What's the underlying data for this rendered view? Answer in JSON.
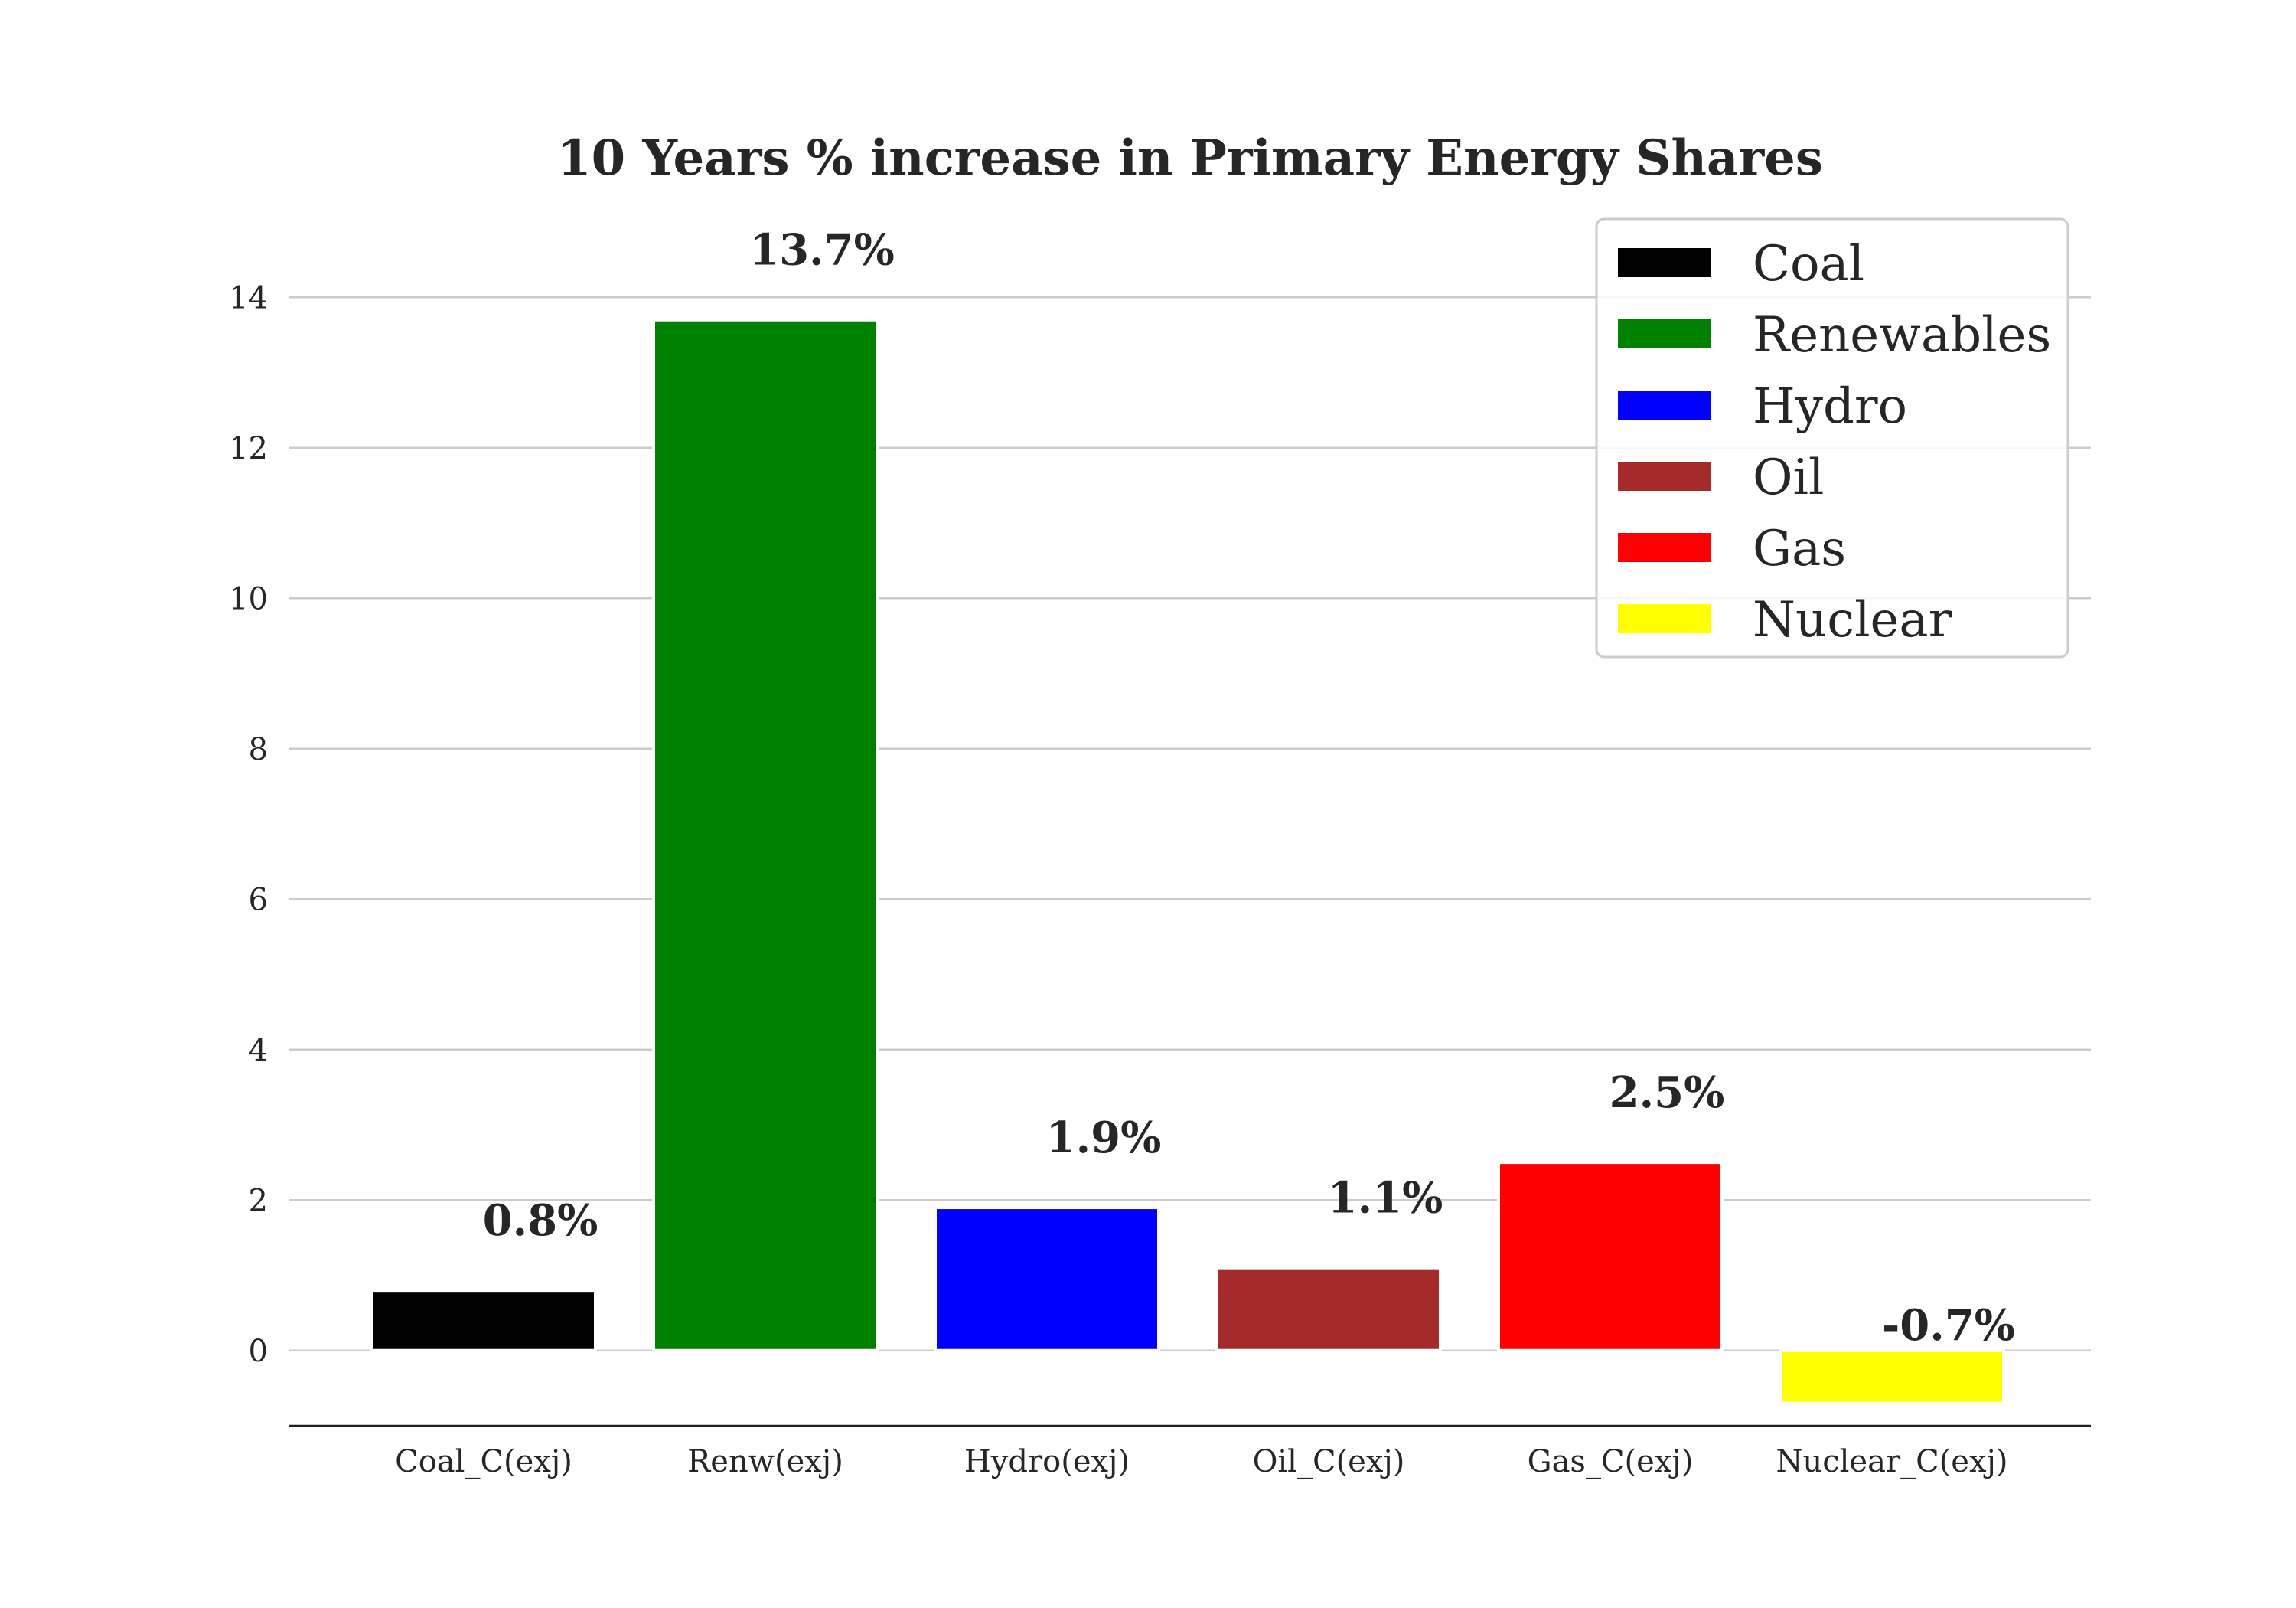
{
  "chart_data": {
    "type": "bar",
    "title": "10 Years % increase in Primary Energy Shares",
    "categories": [
      "Coal_C(exj)",
      "Renw(exj)",
      "Hydro(exj)",
      "Oil_C(exj)",
      "Gas_C(exj)",
      "Nuclear_C(exj)"
    ],
    "values": [
      0.8,
      13.7,
      1.9,
      1.1,
      2.5,
      -0.7
    ],
    "data_labels": [
      "0.8%",
      "13.7%",
      "1.9%",
      "1.1%",
      "2.5%",
      "-0.7%"
    ],
    "colors": [
      "#000000",
      "#008000",
      "#0000ff",
      "#a52a2a",
      "#ff0000",
      "#ffff00"
    ],
    "legend": [
      "Coal",
      "Renewables",
      "Hydro",
      "Oil",
      "Gas",
      "Nuclear"
    ],
    "legend_position": "top-right",
    "yticks": [
      "0",
      "2",
      "4",
      "6",
      "8",
      "10",
      "12",
      "14"
    ],
    "ylim": [
      -1,
      15
    ],
    "grid": "horizontal",
    "xlabel": "",
    "ylabel": ""
  }
}
